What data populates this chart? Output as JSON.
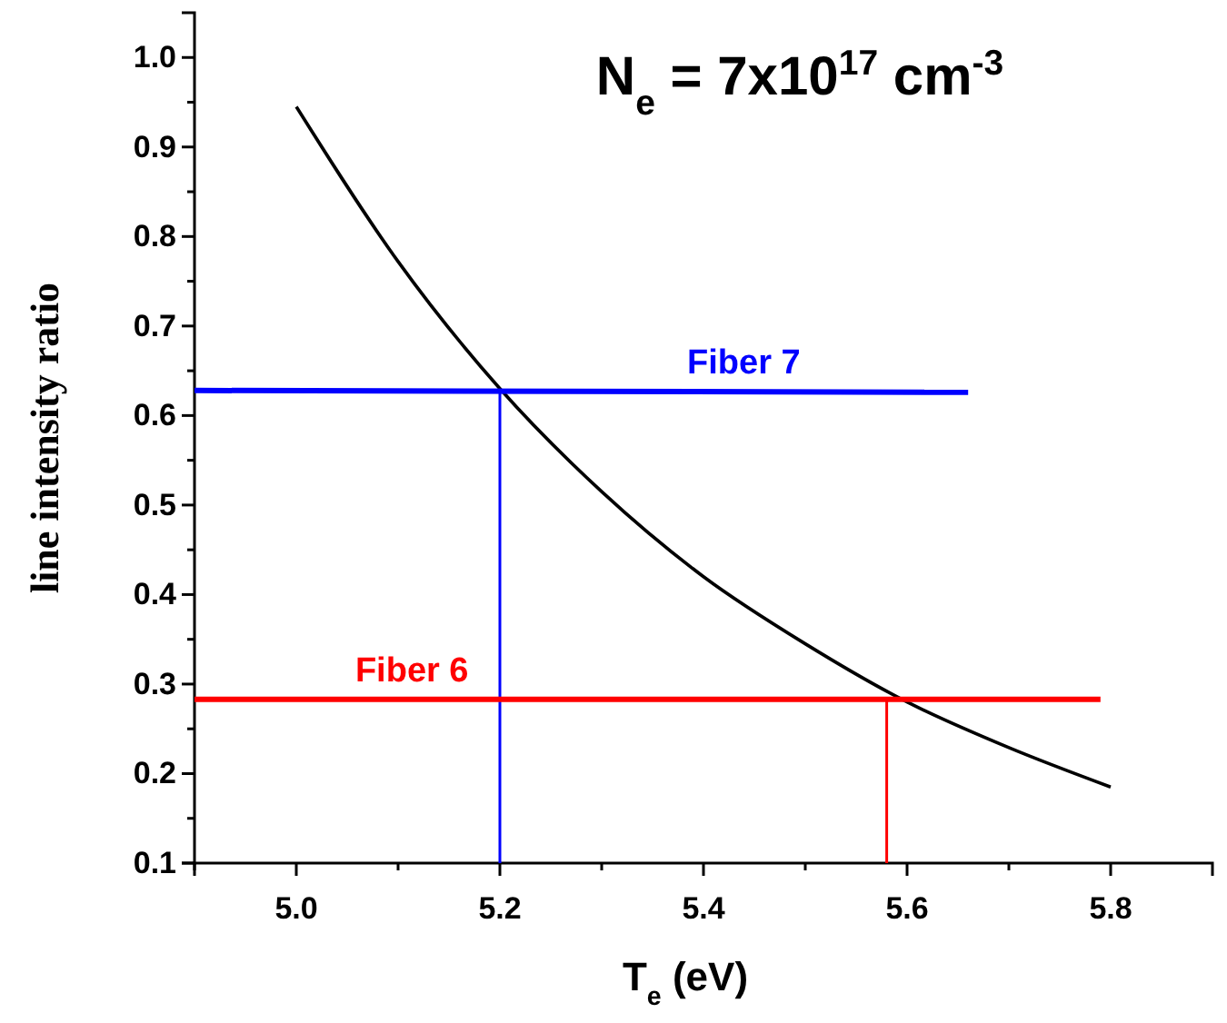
{
  "chart_data": {
    "type": "line",
    "title": "N$_{e}$ = 7x10$^{17}$ cm$^{-3}$",
    "xlabel": "T$_{e}$ (eV)",
    "ylabel": "line intensity ratio",
    "xlim": [
      4.9,
      5.9
    ],
    "ylim": [
      0.1,
      1.05
    ],
    "xticks": [
      {
        "value": 4.9,
        "label": null
      },
      {
        "value": 5,
        "label": "5.0"
      },
      {
        "value": 5.1,
        "label": null
      },
      5.2,
      {
        "value": 5.3,
        "label": null
      },
      5.4,
      {
        "value": 5.5,
        "label": null
      },
      5.6,
      {
        "value": 5.7,
        "label": null
      },
      5.8
    ],
    "yticks": [
      0.1,
      {
        "value": 0.15,
        "label": null
      },
      0.2,
      {
        "value": 0.25,
        "label": null
      },
      0.3,
      {
        "value": 0.35,
        "label": null
      },
      0.4,
      {
        "value": 0.45,
        "label": null
      },
      0.5,
      {
        "value": 0.55,
        "label": null
      },
      0.6,
      {
        "value": 0.65,
        "label": null
      },
      0.7,
      {
        "value": 0.75,
        "label": null
      },
      0.8,
      {
        "value": 0.85,
        "label": null
      },
      0.9,
      {
        "value": 0.95,
        "label": null
      },
      {
        "value": 1,
        "label": "1.0"
      }
    ],
    "grid": false,
    "marker": "none",
    "line_style": "solid",
    "series": [
      {
        "color": "#000000",
        "x": [
          5.0,
          5.1,
          5.2,
          5.3,
          5.4,
          5.5,
          5.6,
          5.7,
          5.8
        ],
        "values": [
          0.945,
          0.772,
          0.63,
          0.515,
          0.42,
          0.345,
          0.28,
          0.229,
          0.185
        ]
      },
      {
        "name": "Fiber 7",
        "color": "#0000ff",
        "x": [
          4.9,
          5.66
        ],
        "values": [
          0.628,
          0.626
        ]
      },
      {
        "color": "#0000ff",
        "x": [
          5.2,
          5.2
        ],
        "values": [
          0.1,
          0.628
        ]
      },
      {
        "name": "Fiber 6",
        "color": "#ff0000",
        "x": [
          4.9,
          5.79
        ],
        "values": [
          0.283,
          0.283
        ]
      },
      {
        "color": "#ff0000",
        "x": [
          5.58,
          5.58
        ],
        "values": [
          0.1,
          0.283
        ]
      }
    ]
  }
}
